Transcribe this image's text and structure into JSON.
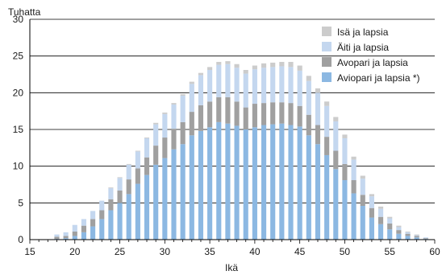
{
  "chart_data": {
    "type": "bar",
    "stacked": true,
    "ylabel": "Tuhatta",
    "xlabel": "Ikä",
    "ylim": [
      0,
      30
    ],
    "yticks": [
      0,
      5,
      10,
      15,
      20,
      25,
      30
    ],
    "xlim": [
      15,
      60
    ],
    "xticks": [
      15,
      20,
      25,
      30,
      35,
      40,
      45,
      50,
      55,
      60
    ],
    "grid": "horizontal",
    "legend_position": "top-right",
    "x": [
      18,
      19,
      20,
      21,
      22,
      23,
      24,
      25,
      26,
      27,
      28,
      29,
      30,
      31,
      32,
      33,
      34,
      35,
      36,
      37,
      38,
      39,
      40,
      41,
      42,
      43,
      44,
      45,
      46,
      47,
      48,
      49,
      50,
      51,
      52,
      53,
      54,
      55,
      56,
      57,
      58,
      59
    ],
    "series": [
      {
        "name": "Aviopari ja lapsia *)",
        "color": "#8cb8e2",
        "values": [
          0.1,
          0.2,
          0.5,
          1.0,
          1.8,
          2.8,
          4.0,
          5.0,
          6.2,
          7.6,
          8.8,
          10.2,
          11.1,
          12.3,
          13.0,
          14.2,
          14.8,
          15.3,
          16.0,
          15.8,
          15.5,
          15.0,
          15.3,
          15.6,
          15.7,
          15.8,
          15.6,
          15.4,
          14.2,
          13.0,
          11.5,
          9.6,
          8.1,
          6.3,
          4.6,
          3.0,
          2.1,
          1.4,
          0.8,
          0.5,
          0.3,
          0.1
        ]
      },
      {
        "name": "Avopari ja lapsia",
        "color": "#a0a0a0",
        "values": [
          0.3,
          0.3,
          0.6,
          0.9,
          1.0,
          1.2,
          1.5,
          1.7,
          2.0,
          2.1,
          2.4,
          2.6,
          2.8,
          2.8,
          3.0,
          3.2,
          3.5,
          3.5,
          3.4,
          3.6,
          3.3,
          3.0,
          3.2,
          3.0,
          3.0,
          2.9,
          3.0,
          2.8,
          2.8,
          2.6,
          2.5,
          2.5,
          2.2,
          1.8,
          1.5,
          1.3,
          1.0,
          0.8,
          0.5,
          0.3,
          0.2,
          0.1
        ]
      },
      {
        "name": "Äiti ja lapsia",
        "color": "#c4d7ef",
        "values": [
          0.3,
          0.5,
          0.9,
          0.9,
          1.1,
          1.3,
          1.5,
          1.7,
          2.0,
          2.3,
          2.6,
          2.9,
          3.2,
          3.3,
          3.6,
          3.8,
          4.1,
          4.3,
          4.4,
          4.5,
          4.6,
          4.6,
          4.7,
          4.8,
          4.8,
          4.9,
          4.9,
          4.8,
          4.6,
          4.4,
          4.2,
          4.0,
          3.5,
          2.8,
          2.2,
          1.6,
          1.1,
          0.7,
          0.4,
          0.2,
          0.1,
          0.1
        ]
      },
      {
        "name": "Isä ja lapsia",
        "color": "#cccccc",
        "values": [
          0.0,
          0.0,
          0.0,
          0.0,
          0.0,
          0.0,
          0.1,
          0.1,
          0.1,
          0.1,
          0.1,
          0.2,
          0.2,
          0.2,
          0.2,
          0.3,
          0.3,
          0.4,
          0.4,
          0.4,
          0.5,
          0.5,
          0.5,
          0.6,
          0.6,
          0.6,
          0.7,
          0.7,
          0.7,
          0.6,
          0.6,
          0.6,
          0.5,
          0.4,
          0.4,
          0.3,
          0.3,
          0.2,
          0.2,
          0.1,
          0.1,
          0.0
        ]
      }
    ],
    "legend_order": [
      "Isä ja lapsia",
      "Äiti ja lapsia",
      "Avopari ja lapsia",
      "Aviopari ja lapsia *)"
    ]
  }
}
